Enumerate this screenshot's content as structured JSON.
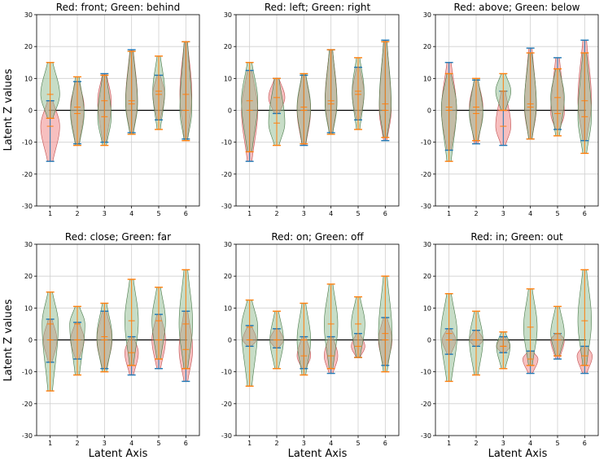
{
  "figure": {
    "ylabel": "Latent Z values",
    "xlabel": "Latent Axis"
  },
  "colors": {
    "red": "#f08080",
    "green": "#8fbc8f",
    "overlap": "#808080",
    "extrema_blue": "#1f77b4",
    "extrema_orange": "#ff7f0e",
    "median_line": "#ff7f0e",
    "zero_line": "#000000",
    "grid": "#d0d0d0"
  },
  "chart_data": [
    {
      "type": "violin",
      "title": "Red: front; Green: behind",
      "x": [
        1,
        2,
        3,
        4,
        5,
        6
      ],
      "ylim": [
        -30,
        30
      ],
      "yticks": [
        -30,
        -20,
        -10,
        0,
        10,
        20,
        30
      ],
      "grid": true,
      "series": [
        {
          "name": "front",
          "color": "red",
          "min": [
            -16,
            -10.5,
            -10,
            -7,
            -3,
            -9
          ],
          "max": [
            3,
            9,
            11.5,
            19,
            11,
            21.5
          ],
          "median": [
            -5,
            1,
            3,
            3,
            5,
            5
          ],
          "peak": [
            -5,
            1,
            3,
            3,
            5,
            5
          ],
          "width": [
            0.35,
            0.25,
            0.25,
            0.22,
            0.22,
            0.22
          ]
        },
        {
          "name": "behind",
          "color": "green",
          "min": [
            -2.5,
            -11,
            -11,
            -7.5,
            -6,
            -9.5
          ],
          "max": [
            15,
            10.5,
            11,
            18.5,
            17,
            21.5
          ],
          "median": [
            5,
            -1,
            -2,
            2,
            6,
            0
          ],
          "peak": [
            5,
            -1,
            -2,
            2,
            6,
            0
          ],
          "width": [
            0.35,
            0.25,
            0.25,
            0.22,
            0.22,
            0.22
          ]
        }
      ]
    },
    {
      "type": "violin",
      "title": "Red: left; Green: right",
      "x": [
        1,
        2,
        3,
        4,
        5,
        6
      ],
      "ylim": [
        -30,
        30
      ],
      "yticks": [
        -30,
        -20,
        -10,
        0,
        10,
        20,
        30
      ],
      "grid": true,
      "series": [
        {
          "name": "left",
          "color": "red",
          "min": [
            -16,
            -1,
            -11,
            -7,
            -3,
            -9.5
          ],
          "max": [
            12.5,
            10,
            11,
            19,
            13.5,
            22
          ],
          "median": [
            0,
            4,
            0,
            3,
            5,
            0
          ],
          "peak": [
            0,
            4,
            0,
            3,
            5,
            0
          ],
          "width": [
            0.3,
            0.3,
            0.25,
            0.22,
            0.22,
            0.22
          ]
        },
        {
          "name": "right",
          "color": "green",
          "min": [
            -13,
            -11,
            -10.5,
            -7.5,
            -6,
            -8.5
          ],
          "max": [
            15,
            10,
            11.5,
            19,
            16.5,
            21.5
          ],
          "median": [
            3,
            -4,
            1,
            2,
            6,
            2
          ],
          "peak": [
            3,
            -4,
            1,
            2,
            6,
            2
          ],
          "width": [
            0.3,
            0.3,
            0.25,
            0.22,
            0.22,
            0.22
          ]
        }
      ]
    },
    {
      "type": "violin",
      "title": "Red: above; Green: below",
      "x": [
        1,
        2,
        3,
        4,
        5,
        6
      ],
      "ylim": [
        -30,
        30
      ],
      "yticks": [
        -30,
        -20,
        -10,
        0,
        10,
        20,
        30
      ],
      "grid": true,
      "series": [
        {
          "name": "above",
          "color": "red",
          "min": [
            -12.5,
            -10.5,
            -11,
            -9,
            -6,
            -9.5
          ],
          "max": [
            15,
            9.5,
            6,
            19.5,
            16.5,
            22
          ],
          "median": [
            0,
            1,
            -5,
            1,
            -1,
            3
          ],
          "peak": [
            0,
            1,
            -5,
            1,
            -1,
            3
          ],
          "width": [
            0.28,
            0.25,
            0.28,
            0.22,
            0.25,
            0.25
          ]
        },
        {
          "name": "below",
          "color": "green",
          "min": [
            -16,
            -9.5,
            0,
            -9,
            -8,
            -13.5
          ],
          "max": [
            11.5,
            10,
            11.5,
            18,
            13,
            18
          ],
          "median": [
            1,
            -1,
            6,
            2,
            4,
            -2
          ],
          "peak": [
            1,
            -1,
            6,
            2,
            4,
            -2
          ],
          "width": [
            0.28,
            0.25,
            0.28,
            0.22,
            0.25,
            0.25
          ]
        }
      ]
    },
    {
      "type": "violin",
      "title": "Red: close; Green: far",
      "x": [
        1,
        2,
        3,
        4,
        5,
        6
      ],
      "ylim": [
        -30,
        30
      ],
      "yticks": [
        -30,
        -20,
        -10,
        0,
        10,
        20,
        30
      ],
      "grid": true,
      "series": [
        {
          "name": "close",
          "color": "red",
          "min": [
            -7,
            -6,
            -9,
            -11,
            -9,
            -13
          ],
          "max": [
            6.5,
            5.5,
            9,
            1,
            8,
            9
          ],
          "median": [
            0,
            0,
            0,
            -4,
            0,
            -3
          ],
          "peak": [
            0,
            0,
            0,
            -4,
            0,
            -3
          ],
          "width": [
            0.25,
            0.25,
            0.28,
            0.25,
            0.25,
            0.25
          ]
        },
        {
          "name": "far",
          "color": "green",
          "min": [
            -16,
            -11,
            -10,
            -8,
            -6,
            -9
          ],
          "max": [
            15,
            10.5,
            11.5,
            19,
            16.5,
            22
          ],
          "median": [
            5,
            5,
            1,
            6,
            6,
            5
          ],
          "peak": [
            5,
            5,
            1,
            6,
            6,
            5
          ],
          "width": [
            0.3,
            0.28,
            0.28,
            0.25,
            0.25,
            0.25
          ]
        }
      ]
    },
    {
      "type": "violin",
      "title": "Red: on; Green: off",
      "x": [
        1,
        2,
        3,
        4,
        5,
        6
      ],
      "ylim": [
        -30,
        30
      ],
      "yticks": [
        -30,
        -20,
        -10,
        0,
        10,
        20,
        30
      ],
      "grid": true,
      "series": [
        {
          "name": "on",
          "color": "red",
          "min": [
            -2,
            -2.5,
            -9,
            -10.5,
            -5.5,
            -8
          ],
          "max": [
            4.5,
            3.5,
            1,
            1,
            2,
            7
          ],
          "median": [
            0,
            0,
            -5,
            -5,
            -2,
            0
          ],
          "peak": [
            0,
            0,
            -5,
            -5,
            -2,
            0
          ],
          "width": [
            0.25,
            0.25,
            0.25,
            0.25,
            0.25,
            0.25
          ]
        },
        {
          "name": "off",
          "color": "green",
          "min": [
            -14.5,
            -9,
            -11,
            -9,
            -5.5,
            -10
          ],
          "max": [
            12.5,
            9,
            11.5,
            17.5,
            13.5,
            20
          ],
          "median": [
            4,
            0,
            0,
            5,
            5,
            2
          ],
          "peak": [
            4,
            0,
            0,
            5,
            5,
            2
          ],
          "width": [
            0.3,
            0.25,
            0.25,
            0.25,
            0.25,
            0.25
          ]
        }
      ]
    },
    {
      "type": "violin",
      "title": "Red: in; Green: out",
      "x": [
        1,
        2,
        3,
        4,
        5,
        6
      ],
      "ylim": [
        -30,
        30
      ],
      "yticks": [
        -30,
        -20,
        -10,
        0,
        10,
        20,
        30
      ],
      "grid": true,
      "series": [
        {
          "name": "in",
          "color": "red",
          "min": [
            -4.5,
            -2,
            -4,
            -10.5,
            -6,
            -10.5
          ],
          "max": [
            3.5,
            3,
            1,
            -3.5,
            2,
            -2
          ],
          "median": [
            0,
            0,
            -2,
            -6,
            0,
            -5
          ],
          "peak": [
            0,
            0,
            -2,
            -6,
            0,
            -5
          ],
          "width": [
            0.25,
            0.25,
            0.25,
            0.28,
            0.25,
            0.28
          ]
        },
        {
          "name": "out",
          "color": "green",
          "min": [
            -13,
            -11,
            -9,
            -8,
            -5,
            -8
          ],
          "max": [
            14.5,
            9,
            2.5,
            16,
            10.5,
            22
          ],
          "median": [
            2,
            0,
            -2,
            4,
            2,
            6
          ],
          "peak": [
            2,
            0,
            -2,
            4,
            2,
            6
          ],
          "width": [
            0.3,
            0.25,
            0.25,
            0.25,
            0.25,
            0.25
          ]
        }
      ]
    }
  ]
}
